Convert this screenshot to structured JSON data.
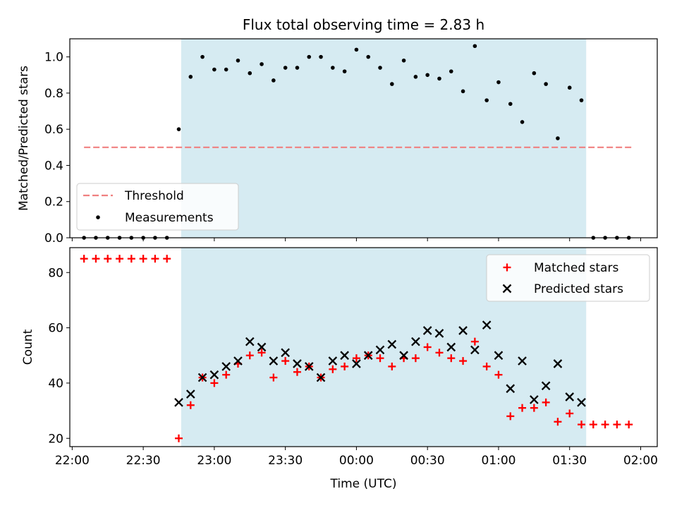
{
  "chart_data": [
    {
      "type": "scatter",
      "title": "Flux total observing time = 2.83 h",
      "xlabel": "",
      "ylabel": "Matched/Predicted stars",
      "ylim": [
        0,
        1.1
      ],
      "yticks": [
        0.0,
        0.2,
        0.4,
        0.6,
        0.8,
        1.0
      ],
      "ytick_labels": [
        "0.0",
        "0.2",
        "0.4",
        "0.6",
        "0.8",
        "1.0"
      ],
      "x_range": [
        "21:59",
        "02:07"
      ],
      "shaded_region": {
        "start": "22:46",
        "end": "01:37",
        "color": "#add8e6"
      },
      "legend_position": "lower-left",
      "threshold": {
        "name": "Threshold",
        "value": 0.5,
        "x_start": "22:05",
        "x_end": "01:57",
        "color": "#f08080",
        "style": "dashed"
      },
      "series": [
        {
          "name": "Measurements",
          "color": "#000000",
          "marker": "dot",
          "x": [
            "22:05",
            "22:10",
            "22:15",
            "22:20",
            "22:25",
            "22:30",
            "22:35",
            "22:40",
            "22:45",
            "22:50",
            "22:55",
            "23:00",
            "23:05",
            "23:10",
            "23:15",
            "23:20",
            "23:25",
            "23:30",
            "23:35",
            "23:40",
            "23:45",
            "23:50",
            "23:55",
            "00:00",
            "00:05",
            "00:10",
            "00:15",
            "00:20",
            "00:25",
            "00:30",
            "00:35",
            "00:40",
            "00:45",
            "00:50",
            "00:55",
            "01:00",
            "01:05",
            "01:10",
            "01:15",
            "01:20",
            "01:25",
            "01:30",
            "01:35",
            "01:40",
            "01:45",
            "01:50",
            "01:55"
          ],
          "y": [
            0,
            0,
            0,
            0,
            0,
            0,
            0,
            0,
            0.6,
            0.89,
            1.0,
            0.93,
            0.93,
            0.98,
            0.91,
            0.96,
            0.87,
            0.94,
            0.94,
            1.0,
            1.0,
            0.94,
            0.92,
            1.04,
            1.0,
            0.94,
            0.85,
            0.98,
            0.89,
            0.9,
            0.88,
            0.92,
            0.81,
            1.06,
            0.76,
            0.86,
            0.74,
            0.64,
            0.91,
            0.85,
            0.55,
            0.83,
            0.76,
            0,
            0,
            0,
            0
          ]
        }
      ]
    },
    {
      "type": "scatter",
      "title": "",
      "xlabel": "Time (UTC)",
      "ylabel": "Count",
      "ylim": [
        17,
        89
      ],
      "yticks": [
        20,
        40,
        60,
        80
      ],
      "ytick_labels": [
        "20",
        "40",
        "60",
        "80"
      ],
      "xticks": [
        "22:00",
        "22:30",
        "23:00",
        "23:30",
        "00:00",
        "00:30",
        "01:00",
        "01:30",
        "02:00"
      ],
      "legend_position": "upper-right",
      "series": [
        {
          "name": "Matched stars",
          "color": "#ff0000",
          "marker": "plus",
          "x": [
            "22:05",
            "22:10",
            "22:15",
            "22:20",
            "22:25",
            "22:30",
            "22:35",
            "22:40",
            "22:45",
            "22:50",
            "22:55",
            "23:00",
            "23:05",
            "23:10",
            "23:15",
            "23:20",
            "23:25",
            "23:30",
            "23:35",
            "23:40",
            "23:45",
            "23:50",
            "23:55",
            "00:00",
            "00:05",
            "00:10",
            "00:15",
            "00:20",
            "00:25",
            "00:30",
            "00:35",
            "00:40",
            "00:45",
            "00:50",
            "00:55",
            "01:00",
            "01:05",
            "01:10",
            "01:15",
            "01:20",
            "01:25",
            "01:30",
            "01:35",
            "01:40",
            "01:45",
            "01:50",
            "01:55"
          ],
          "y": [
            85,
            85,
            85,
            85,
            85,
            85,
            85,
            85,
            20,
            32,
            42,
            40,
            43,
            47,
            50,
            51,
            42,
            48,
            44,
            46,
            42,
            45,
            46,
            49,
            50,
            49,
            46,
            49,
            49,
            53,
            51,
            49,
            48,
            55,
            46,
            43,
            28,
            31,
            31,
            33,
            26,
            29,
            25,
            25,
            25,
            25,
            25
          ]
        },
        {
          "name": "Predicted stars",
          "color": "#000000",
          "marker": "x",
          "x": [
            "22:45",
            "22:50",
            "22:55",
            "23:00",
            "23:05",
            "23:10",
            "23:15",
            "23:20",
            "23:25",
            "23:30",
            "23:35",
            "23:40",
            "23:45",
            "23:50",
            "23:55",
            "00:00",
            "00:05",
            "00:10",
            "00:15",
            "00:20",
            "00:25",
            "00:30",
            "00:35",
            "00:40",
            "00:45",
            "00:50",
            "00:55",
            "01:00",
            "01:05",
            "01:10",
            "01:15",
            "01:20",
            "01:25",
            "01:30",
            "01:35"
          ],
          "y": [
            33,
            36,
            42,
            43,
            46,
            48,
            55,
            53,
            48,
            51,
            47,
            46,
            42,
            48,
            50,
            47,
            50,
            52,
            54,
            50,
            55,
            59,
            58,
            53,
            59,
            52,
            61,
            50,
            38,
            48,
            34,
            39,
            47,
            35,
            33
          ]
        }
      ]
    }
  ]
}
